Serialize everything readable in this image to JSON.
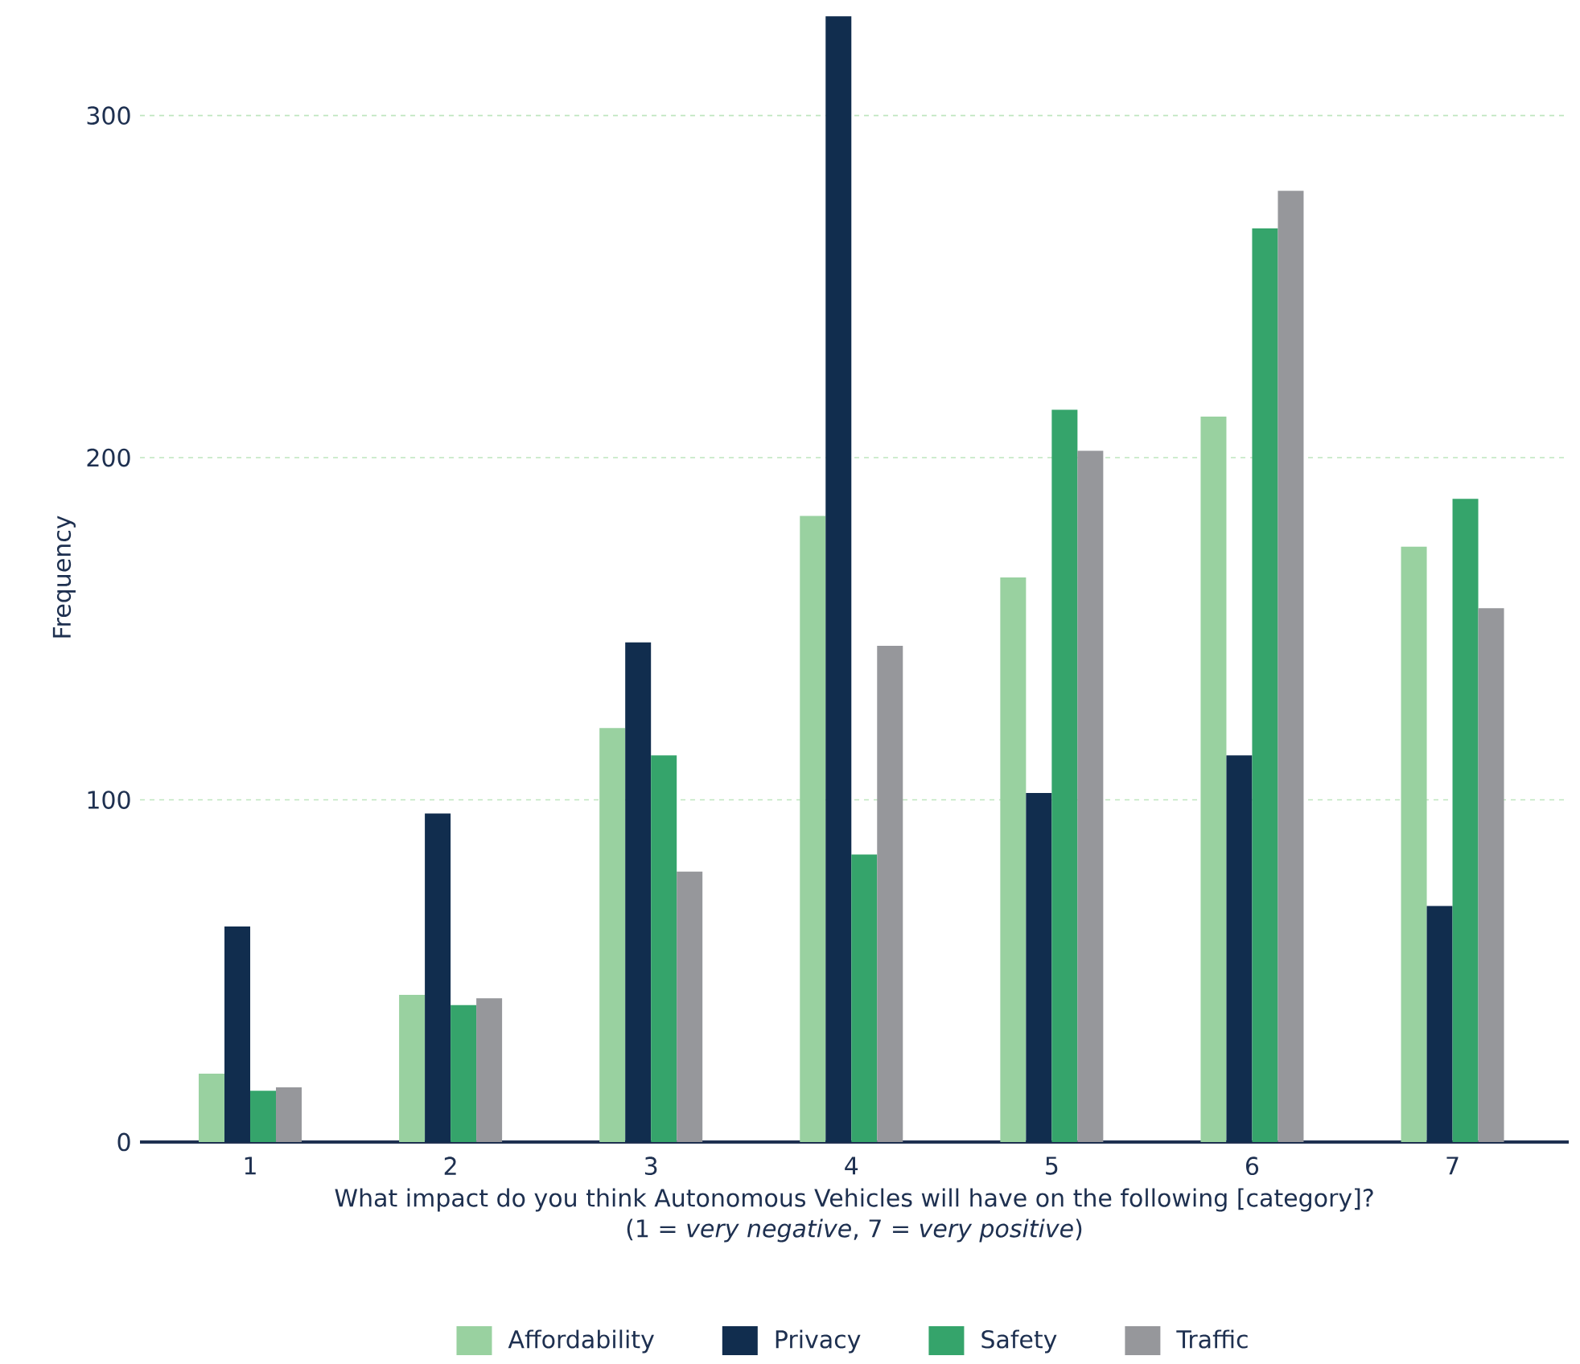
{
  "chart_data": {
    "type": "bar",
    "xlabel": "What impact do you think Autonomous Vehicles will have on the following [category]?",
    "ylabel": "Frequency",
    "annotations": [
      "(1 = *very negative*, 7 = *very positive*)"
    ],
    "categories": [
      "1",
      "2",
      "3",
      "4",
      "5",
      "6",
      "7"
    ],
    "series": [
      {
        "name": "Affordability",
        "color": "#99d1a0",
        "values": [
          20,
          43,
          121,
          183,
          165,
          212,
          174
        ]
      },
      {
        "name": "Privacy",
        "color": "#112d4e",
        "values": [
          63,
          96,
          146,
          329,
          102,
          113,
          69
        ]
      },
      {
        "name": "Safety",
        "color": "#35a46b",
        "values": [
          15,
          40,
          113,
          84,
          214,
          267,
          188
        ]
      },
      {
        "name": "Traffic",
        "color": "#96979b",
        "values": [
          16,
          42,
          79,
          145,
          202,
          278,
          156
        ]
      }
    ],
    "ylim": [
      0,
      330
    ],
    "yticks": [
      0,
      100,
      200,
      300
    ],
    "grid": "y",
    "legend": "bottom"
  }
}
